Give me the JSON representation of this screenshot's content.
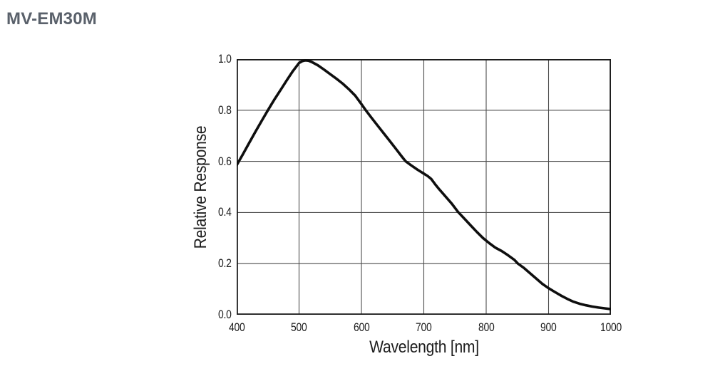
{
  "page": {
    "title": "MV-EM30M",
    "title_color": "#5a616b"
  },
  "chart_data": {
    "type": "line",
    "title": "",
    "xlabel": "Wavelength [nm]",
    "ylabel": "Relative Response",
    "xlim": [
      400,
      1000
    ],
    "ylim": [
      0.0,
      1.0
    ],
    "x_ticks": [
      400,
      500,
      600,
      700,
      800,
      900,
      1000
    ],
    "x_tick_labels": [
      "400",
      "500",
      "600",
      "700",
      "800",
      "900",
      "1000"
    ],
    "y_ticks": [
      0.0,
      0.2,
      0.4,
      0.6,
      0.8,
      1.0
    ],
    "y_tick_labels": [
      "0.0",
      "0.2",
      "0.4",
      "0.6",
      "0.8",
      "1.0"
    ],
    "grid": true,
    "legend": false,
    "line_color": "#0e0e0e",
    "grid_color": "#4d4d4d",
    "border_color": "#1a1a1a",
    "series": [
      {
        "name": "relative response",
        "x": [
          400,
          410,
          420,
          430,
          440,
          450,
          460,
          470,
          480,
          490,
          500,
          505,
          510,
          515,
          520,
          530,
          540,
          550,
          560,
          570,
          580,
          590,
          600,
          607,
          615,
          625,
          635,
          645,
          655,
          665,
          671,
          680,
          690,
          700,
          706,
          712,
          718,
          725,
          735,
          745,
          755,
          765,
          775,
          785,
          795,
          805,
          815,
          825,
          835,
          845,
          851,
          860,
          870,
          880,
          890,
          900,
          910,
          920,
          930,
          940,
          950,
          960,
          970,
          980,
          990,
          1000
        ],
        "y": [
          0.585,
          0.628,
          0.672,
          0.716,
          0.758,
          0.8,
          0.84,
          0.878,
          0.916,
          0.953,
          0.985,
          0.992,
          0.995,
          0.994,
          0.989,
          0.976,
          0.959,
          0.941,
          0.923,
          0.904,
          0.882,
          0.857,
          0.824,
          0.8,
          0.774,
          0.743,
          0.712,
          0.681,
          0.65,
          0.618,
          0.6,
          0.584,
          0.567,
          0.552,
          0.543,
          0.531,
          0.511,
          0.49,
          0.462,
          0.434,
          0.402,
          0.376,
          0.35,
          0.324,
          0.3,
          0.28,
          0.262,
          0.249,
          0.233,
          0.215,
          0.2,
          0.184,
          0.163,
          0.142,
          0.121,
          0.104,
          0.089,
          0.075,
          0.062,
          0.051,
          0.043,
          0.037,
          0.032,
          0.028,
          0.025,
          0.022
        ]
      }
    ]
  }
}
